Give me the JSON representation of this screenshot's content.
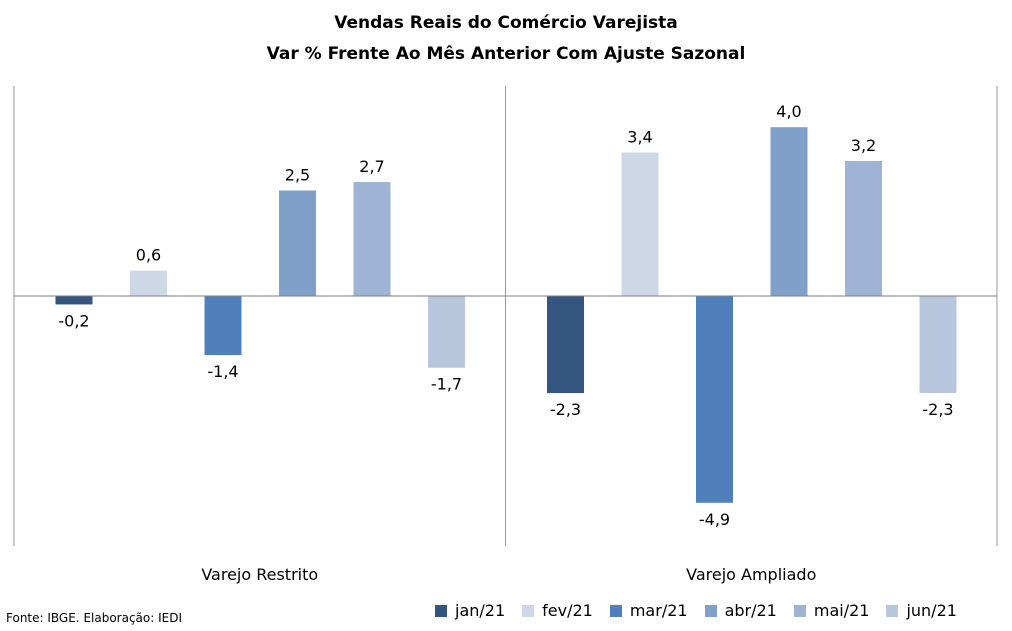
{
  "chart_data": {
    "type": "bar",
    "title": "Vendas Reais do Comércio Varejista",
    "subtitle": "Var % Frente Ao Mês Anterior Com Ajuste Sazonal",
    "groups": [
      "Varejo Restrito",
      "Varejo Ampliado"
    ],
    "series": [
      {
        "name": "jan/21",
        "color": "#34557f",
        "values": [
          -0.2,
          -2.3
        ],
        "labels": [
          "-0,2",
          "-2,3"
        ]
      },
      {
        "name": "fev/21",
        "color": "#cdd7e5",
        "values": [
          0.6,
          3.4
        ],
        "labels": [
          "0,6",
          "3,4"
        ]
      },
      {
        "name": "mar/21",
        "color": "#4f80bc",
        "values": [
          -1.4,
          -4.9
        ],
        "labels": [
          "-1,4",
          "-4,9"
        ]
      },
      {
        "name": "abr/21",
        "color": "#809fc9",
        "values": [
          2.5,
          4.0
        ],
        "labels": [
          "2,5",
          "4,0"
        ]
      },
      {
        "name": "mai/21",
        "color": "#9fb3d4",
        "values": [
          2.7,
          3.2
        ],
        "labels": [
          "2,7",
          "3,2"
        ]
      },
      {
        "name": "jun/21",
        "color": "#b8c7de",
        "values": [
          -1.7,
          -2.3
        ],
        "labels": [
          "-1,7",
          "-2,3"
        ]
      }
    ],
    "legend_position": "bottom",
    "grid": false
  },
  "source": "Fonte: IBGE. Elaboração: IEDI"
}
